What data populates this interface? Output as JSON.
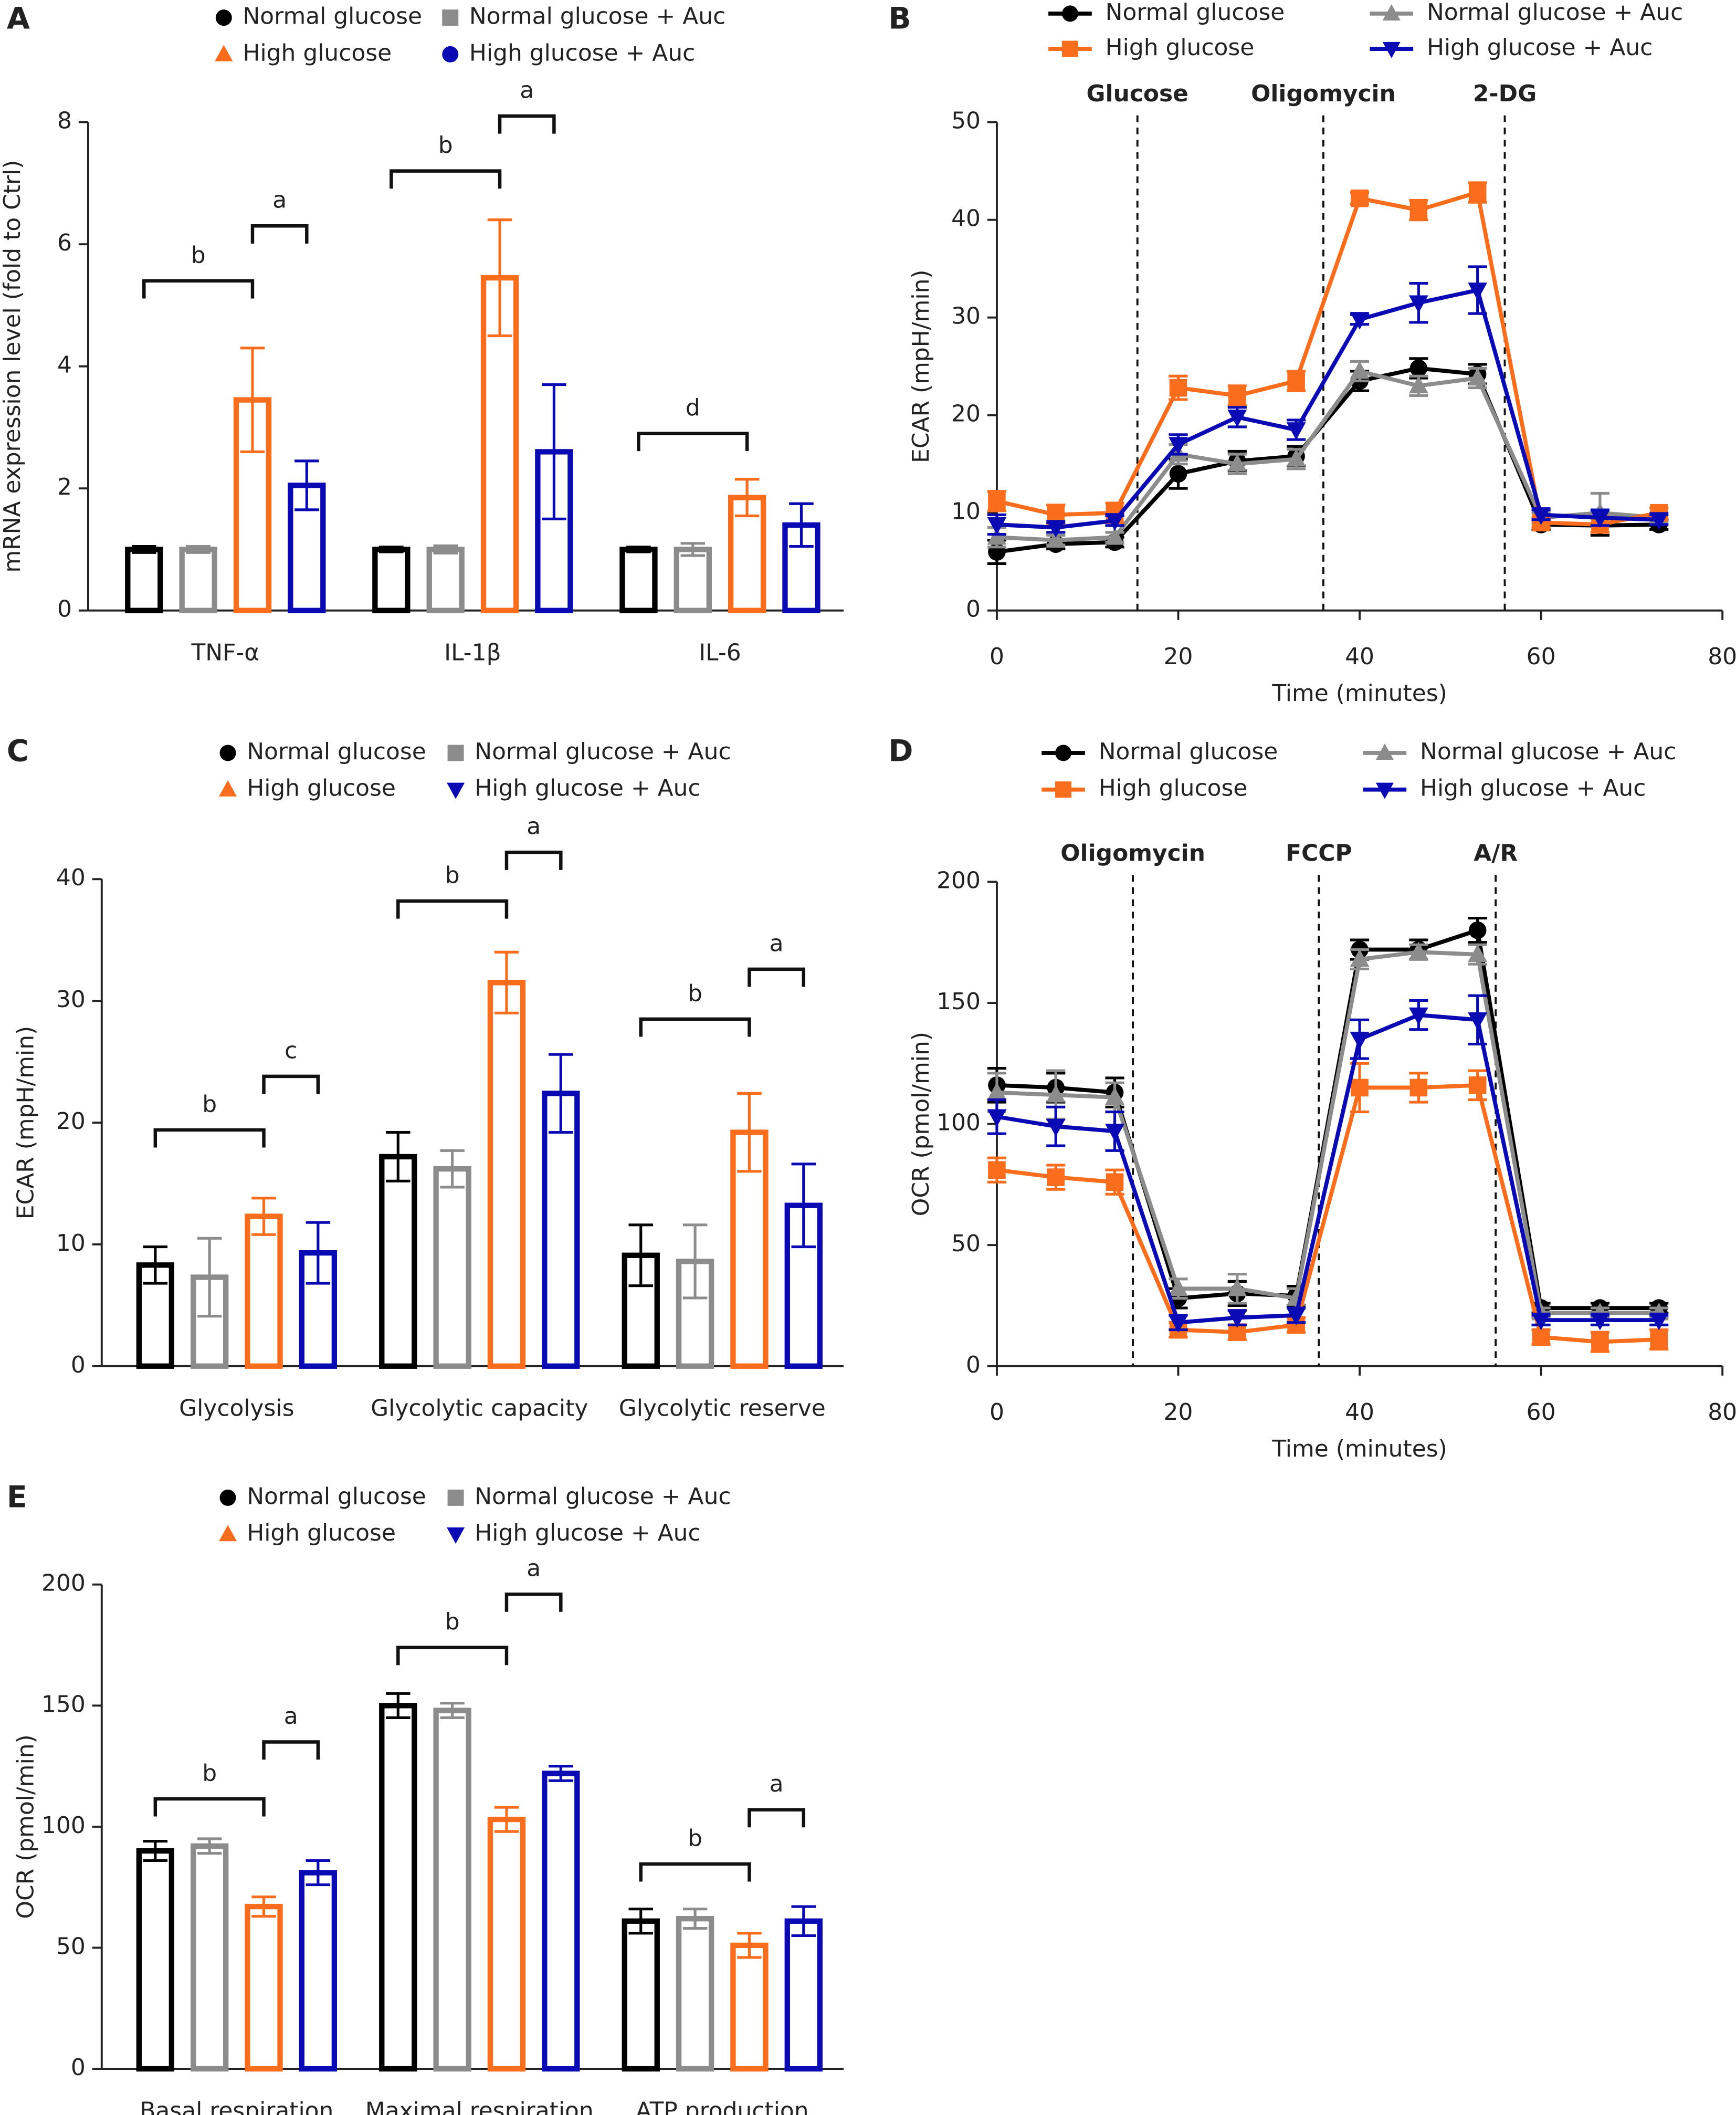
{
  "chart_data": [
    {
      "type": "bar",
      "panel": "A",
      "ylabel": "mRNA expression level (fold to Ctrl)",
      "categories": [
        "TNF-α",
        "IL-1β",
        "IL-6"
      ],
      "ylim": [
        0,
        8
      ],
      "yticks": [
        0,
        2,
        4,
        6,
        8
      ],
      "series": [
        {
          "name": "Normal glucose",
          "color": "#000000",
          "marker": "circle",
          "values": [
            1,
            1,
            1
          ],
          "errors": [
            0.05,
            0.04,
            0.04
          ]
        },
        {
          "name": "Normal glucose + Auc",
          "color": "#8c8c8c",
          "marker": "square",
          "values": [
            1,
            1,
            1
          ],
          "errors": [
            0.05,
            0.06,
            0.1
          ]
        },
        {
          "name": "High glucose",
          "color": "#f96d1c",
          "marker": "triangle",
          "values": [
            3.45,
            5.45,
            1.85
          ],
          "errors": [
            0.85,
            0.95,
            0.3
          ]
        },
        {
          "name": "High glucose + Auc",
          "color": "#0a0ab4",
          "marker": "circle",
          "values": [
            2.05,
            2.6,
            1.4
          ],
          "errors": [
            0.4,
            1.1,
            0.35
          ]
        }
      ],
      "annotations": [
        {
          "label": "b",
          "category": 0,
          "from": 0,
          "to": 2,
          "y": 5.4
        },
        {
          "label": "a",
          "category": 0,
          "from": 2,
          "to": 3,
          "y": 6.3
        },
        {
          "label": "b",
          "category": 1,
          "from": 0,
          "to": 2,
          "y": 7.2
        },
        {
          "label": "a",
          "category": 1,
          "from": 2,
          "to": 3,
          "y": 8.1
        },
        {
          "label": "d",
          "category": 2,
          "from": 0,
          "to": 2,
          "y": 2.9
        }
      ]
    },
    {
      "type": "line",
      "panel": "B",
      "ylabel": "ECAR (mpH/min)",
      "xlabel": "Time (minutes)",
      "x": [
        0,
        6.5,
        13,
        20,
        26.5,
        33,
        40,
        46.5,
        53,
        60,
        66.5,
        73
      ],
      "xlim": [
        0,
        80
      ],
      "xticks": [
        0,
        20,
        40,
        60,
        80
      ],
      "ylim": [
        0,
        50
      ],
      "yticks": [
        0,
        10,
        20,
        30,
        40,
        50
      ],
      "events": [
        {
          "label": "Glucose",
          "x": 15.5
        },
        {
          "label": "Oligomycin",
          "x": 36
        },
        {
          "label": "2-DG",
          "x": 56
        }
      ],
      "series": [
        {
          "name": "Normal glucose",
          "color": "#000000",
          "marker": "circle",
          "values": [
            6,
            6.8,
            7,
            14,
            15.3,
            15.8,
            23.5,
            24.8,
            24.2,
            8.8,
            8.7,
            8.8
          ],
          "errors": [
            1.2,
            0.5,
            0.5,
            1.5,
            1,
            1,
            1,
            1,
            1,
            0.5,
            1,
            0.5
          ]
        },
        {
          "name": "Normal glucose + Auc",
          "color": "#8c8c8c",
          "marker": "triangle",
          "values": [
            7.5,
            7.2,
            7.5,
            16,
            15,
            15.5,
            24.5,
            23,
            23.8,
            9.5,
            10,
            9.5
          ],
          "errors": [
            1,
            0.5,
            0.5,
            1,
            1,
            1,
            1,
            1,
            1,
            0.5,
            2,
            0.5
          ]
        },
        {
          "name": "High glucose",
          "color": "#f96d1c",
          "marker": "square",
          "values": [
            11.2,
            9.8,
            10,
            22.8,
            22,
            23.5,
            42.2,
            41,
            42.8,
            9,
            8.8,
            10
          ],
          "errors": [
            1,
            1,
            1,
            1.2,
            1,
            1,
            0.6,
            1,
            1,
            0.5,
            0.8,
            0.5
          ]
        },
        {
          "name": "High glucose + Auc",
          "color": "#0a0ab4",
          "marker": "triangle-down",
          "values": [
            8.8,
            8.5,
            9.2,
            17,
            19.8,
            18.5,
            29.8,
            31.5,
            32.8,
            9.8,
            9.5,
            9.3
          ],
          "errors": [
            1,
            0.5,
            0.5,
            1,
            1,
            1,
            0.5,
            2,
            2.4,
            0.5,
            0.8,
            0.5
          ]
        }
      ]
    },
    {
      "type": "bar",
      "panel": "C",
      "ylabel": "ECAR (mpH/min)",
      "categories": [
        "Glycolysis",
        "Glycolytic capacity",
        "Glycolytic reserve"
      ],
      "ylim": [
        0,
        40
      ],
      "yticks": [
        0,
        10,
        20,
        30,
        40
      ],
      "series": [
        {
          "name": "Normal glucose",
          "color": "#000000",
          "marker": "circle",
          "values": [
            8.3,
            17.2,
            9.1
          ],
          "errors": [
            1.5,
            2,
            2.5
          ]
        },
        {
          "name": "Normal glucose + Auc",
          "color": "#8c8c8c",
          "marker": "square",
          "values": [
            7.3,
            16.2,
            8.6
          ],
          "errors": [
            3.2,
            1.5,
            3
          ]
        },
        {
          "name": "High glucose",
          "color": "#f96d1c",
          "marker": "triangle",
          "values": [
            12.3,
            31.5,
            19.2
          ],
          "errors": [
            1.5,
            2.5,
            3.2
          ]
        },
        {
          "name": "High glucose + Auc",
          "color": "#0a0ab4",
          "marker": "triangle-down",
          "values": [
            9.3,
            22.4,
            13.2
          ],
          "errors": [
            2.5,
            3.2,
            3.4
          ]
        }
      ],
      "annotations": [
        {
          "label": "b",
          "category": 0,
          "from": 0,
          "to": 2,
          "y": 19.4
        },
        {
          "label": "c",
          "category": 0,
          "from": 2,
          "to": 3,
          "y": 23.8
        },
        {
          "label": "b",
          "category": 1,
          "from": 0,
          "to": 2,
          "y": 38.2
        },
        {
          "label": "a",
          "category": 1,
          "from": 2,
          "to": 3,
          "y": 42.2
        },
        {
          "label": "b",
          "category": 2,
          "from": 0,
          "to": 2,
          "y": 28.5
        },
        {
          "label": "a",
          "category": 2,
          "from": 2,
          "to": 3,
          "y": 32.6
        }
      ]
    },
    {
      "type": "line",
      "panel": "D",
      "ylabel": "OCR (pmol/min)",
      "xlabel": "Time (minutes)",
      "x": [
        0,
        6.5,
        13,
        20,
        26.5,
        33,
        40,
        46.5,
        53,
        60,
        66.5,
        73
      ],
      "xlim": [
        0,
        80
      ],
      "xticks": [
        0,
        20,
        40,
        60,
        80
      ],
      "ylim": [
        0,
        200
      ],
      "yticks": [
        0,
        50,
        100,
        150,
        200
      ],
      "events": [
        {
          "label": "Oligomycin",
          "x": 15
        },
        {
          "label": "FCCP",
          "x": 35.5
        },
        {
          "label": "A/R",
          "x": 55
        }
      ],
      "series": [
        {
          "name": "Normal glucose",
          "color": "#000000",
          "marker": "circle",
          "values": [
            116,
            115,
            113,
            28,
            30,
            29,
            172,
            172,
            180,
            24,
            24,
            24
          ],
          "errors": [
            7,
            6,
            6,
            4,
            5,
            4,
            4,
            4,
            5,
            2,
            2,
            2
          ]
        },
        {
          "name": "Normal glucose + Auc",
          "color": "#8c8c8c",
          "marker": "triangle",
          "values": [
            113,
            112,
            111,
            32,
            32,
            28,
            168,
            171,
            170,
            22,
            22,
            22
          ],
          "errors": [
            8,
            10,
            6,
            4,
            6,
            4,
            4,
            3,
            4,
            2,
            2,
            2
          ]
        },
        {
          "name": "High glucose",
          "color": "#f96d1c",
          "marker": "square",
          "values": [
            81,
            78,
            76,
            15,
            14,
            17,
            115,
            115,
            116,
            12,
            10,
            11
          ],
          "errors": [
            5,
            5,
            5,
            3,
            3,
            3,
            10,
            6,
            6,
            3,
            4,
            4
          ]
        },
        {
          "name": "High glucose + Auc",
          "color": "#0a0ab4",
          "marker": "triangle-down",
          "values": [
            103,
            99,
            97,
            18,
            20,
            21,
            135,
            145,
            143,
            19,
            19,
            19
          ],
          "errors": [
            7,
            8,
            8,
            3,
            3,
            3,
            8,
            6,
            10,
            2,
            2,
            2
          ]
        }
      ]
    },
    {
      "type": "bar",
      "panel": "E",
      "ylabel": "OCR (pmol/min)",
      "categories": [
        "Basal respiration",
        "Maximal respiration",
        "ATP production"
      ],
      "ylim": [
        0,
        200
      ],
      "yticks": [
        0,
        50,
        100,
        150,
        200
      ],
      "series": [
        {
          "name": "Normal glucose",
          "color": "#000000",
          "marker": "circle",
          "values": [
            90,
            150,
            61
          ],
          "errors": [
            4,
            5,
            5
          ]
        },
        {
          "name": "Normal glucose + Auc",
          "color": "#8c8c8c",
          "marker": "square",
          "values": [
            92,
            148,
            62
          ],
          "errors": [
            3,
            3,
            4
          ]
        },
        {
          "name": "High glucose",
          "color": "#f96d1c",
          "marker": "triangle",
          "values": [
            67,
            103,
            51
          ],
          "errors": [
            4,
            5,
            5
          ]
        },
        {
          "name": "High glucose + Auc",
          "color": "#0a0ab4",
          "marker": "triangle-down",
          "values": [
            81,
            122,
            61
          ],
          "errors": [
            5,
            3,
            6
          ]
        }
      ],
      "annotations": [
        {
          "label": "b",
          "category": 0,
          "from": 0,
          "to": 2,
          "y": 111.5
        },
        {
          "label": "a",
          "category": 0,
          "from": 2,
          "to": 3,
          "y": 135
        },
        {
          "label": "b",
          "category": 1,
          "from": 0,
          "to": 2,
          "y": 174
        },
        {
          "label": "a",
          "category": 1,
          "from": 2,
          "to": 3,
          "y": 196
        },
        {
          "label": "b",
          "category": 2,
          "from": 0,
          "to": 2,
          "y": 84.6
        },
        {
          "label": "a",
          "category": 2,
          "from": 2,
          "to": 3,
          "y": 107
        }
      ]
    }
  ]
}
